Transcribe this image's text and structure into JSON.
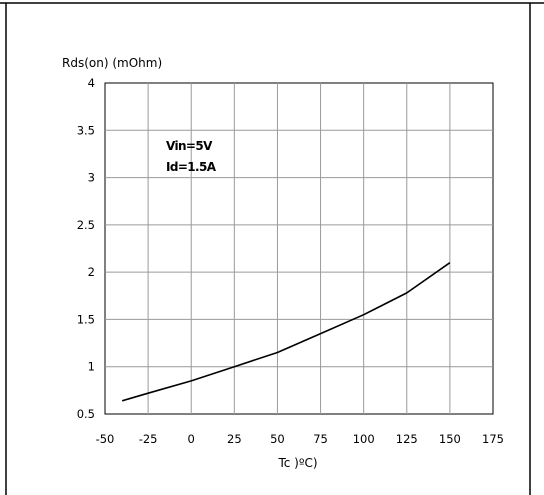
{
  "chart_data": {
    "type": "line",
    "title": "",
    "ylabel": "Rds(on) (mOhm)",
    "xlabel": "Tc )ºC)",
    "xlim": [
      -50,
      175
    ],
    "ylim": [
      0.5,
      4
    ],
    "x_ticks": [
      "-50",
      "-25",
      "0",
      "25",
      "50",
      "75",
      "100",
      "125",
      "150",
      "175"
    ],
    "y_ticks": [
      "0.5",
      "1",
      "1.5",
      "2",
      "2.5",
      "3",
      "3.5",
      "4"
    ],
    "grid": true,
    "legend": "none",
    "annotations": [
      "Vin=5V",
      "Id=1.5A"
    ],
    "series": [
      {
        "color": "#000000",
        "x": [
          -40,
          -25,
          0,
          25,
          50,
          75,
          100,
          125,
          150
        ],
        "y": [
          0.64,
          0.72,
          0.85,
          1.0,
          1.15,
          1.35,
          1.55,
          1.78,
          2.1
        ]
      }
    ]
  }
}
